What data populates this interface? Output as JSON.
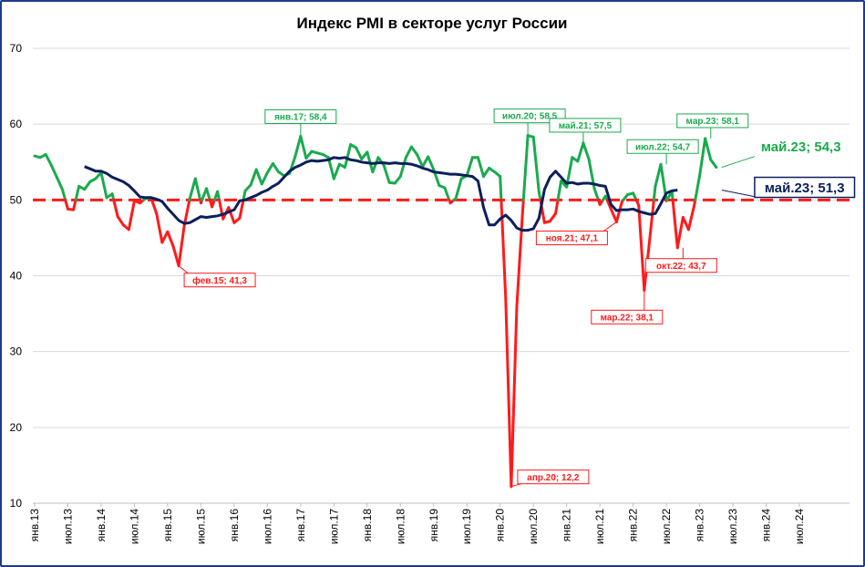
{
  "colors": {
    "green": "#1aaa4e",
    "red": "#ff1a1a",
    "navy": "#0b1f5c",
    "grid": "#d9d9d9",
    "border": "#1f3b86"
  },
  "chart_data": {
    "type": "line",
    "title": "Индекс PMI в секторе услуг России",
    "xlabel": "",
    "ylabel": "",
    "ylim": [
      10,
      70
    ],
    "y_ticks": [
      "10",
      "20",
      "30",
      "40",
      "50",
      "60",
      "70"
    ],
    "grid": "horizontal",
    "threshold": 50,
    "x_tick_labels": [
      "янв.13",
      "июл.13",
      "янв.14",
      "июл.14",
      "янв.15",
      "июл.15",
      "янв.16",
      "июл.16",
      "янв.17",
      "июл.17",
      "янв.18",
      "июл.18",
      "янв.19",
      "июл.19",
      "янв.20",
      "июл.20",
      "янв.21",
      "июл.21",
      "янв.22",
      "июл.22",
      "янв.23",
      "июл.23",
      "янв.24",
      "июл.24"
    ],
    "x_start": "янв.13",
    "series": [
      {
        "role": "monthly",
        "color_above": "green",
        "color_below": "red",
        "values": [
          55.8,
          55.6,
          56.0,
          54.6,
          53.0,
          51.4,
          48.8,
          48.7,
          51.8,
          51.4,
          52.4,
          52.8,
          53.6,
          50.3,
          50.8,
          47.8,
          46.7,
          46.1,
          49.9,
          49.6,
          50.2,
          50.3,
          48.2,
          44.4,
          45.8,
          43.9,
          41.3,
          46.6,
          50.2,
          52.8,
          49.6,
          51.5,
          49.1,
          51.1,
          47.5,
          49.0,
          47.0,
          47.6,
          51.2,
          52.0,
          54.0,
          52.1,
          53.6,
          54.8,
          53.7,
          53.2,
          53.5,
          55.7,
          58.4,
          55.5,
          56.4,
          56.2,
          56.0,
          55.6,
          52.8,
          54.7,
          54.3,
          57.3,
          56.9,
          55.4,
          56.3,
          53.7,
          55.6,
          54.6,
          52.3,
          52.2,
          53.1,
          55.6,
          57.0,
          56.0,
          54.4,
          55.7,
          54.0,
          51.9,
          51.6,
          49.6,
          50.2,
          52.8,
          53.2,
          55.6,
          55.6,
          53.1,
          54.2,
          53.7,
          53.1,
          37.0,
          12.2,
          35.9,
          47.8,
          58.5,
          58.3,
          51.1,
          47.0,
          47.2,
          48.2,
          52.5,
          51.7,
          55.6,
          55.1,
          57.5,
          55.4,
          51.5,
          49.4,
          50.5,
          48.8,
          47.1,
          49.8,
          50.7,
          50.9,
          49.3,
          38.1,
          44.9,
          51.8,
          54.7,
          49.9,
          51.1,
          43.7,
          47.7,
          46.1,
          49.2,
          53.2,
          58.1,
          55.3,
          54.3
        ]
      },
      {
        "role": "moving-average",
        "color": "navy",
        "start_index": 9,
        "values": [
          54.4,
          54.1,
          53.8,
          53.8,
          53.5,
          53.0,
          52.7,
          52.4,
          51.9,
          51.2,
          50.4,
          50.3,
          50.3,
          50.1,
          49.8,
          48.9,
          48.1,
          47.3,
          46.9,
          47.0,
          47.4,
          47.8,
          47.7,
          47.8,
          47.9,
          48.1,
          48.4,
          48.7,
          49.9,
          50.0,
          50.3,
          50.6,
          51.0,
          51.3,
          51.8,
          52.2,
          53.0,
          53.8,
          54.3,
          54.6,
          55.0,
          55.2,
          55.1,
          55.2,
          55.3,
          55.6,
          55.5,
          55.6,
          55.3,
          55.2,
          55.0,
          54.9,
          54.8,
          54.9,
          54.9,
          54.8,
          54.9,
          54.8,
          54.8,
          54.7,
          54.5,
          54.2,
          54.0,
          53.7,
          53.6,
          53.5,
          53.4,
          53.4,
          53.3,
          53.2,
          53.1,
          52.5,
          49.0,
          46.7,
          46.7,
          47.5,
          48.0,
          47.3,
          46.3,
          46.0,
          46.0,
          46.2,
          47.6,
          51.4,
          53.0,
          53.8,
          53.0,
          52.2,
          52.3,
          52.1,
          52.2,
          52.2,
          52.1,
          51.9,
          51.8,
          49.4,
          48.6,
          48.7,
          48.7,
          48.8,
          48.5,
          48.3,
          48.1,
          48.2,
          49.5,
          50.9,
          51.2,
          51.3
        ]
      }
    ],
    "annotations": [
      {
        "label": "янв.17; 58,4",
        "index": 48,
        "value": 58.4,
        "color": "green",
        "size": "small"
      },
      {
        "label": "фев.15; 41,3",
        "index": 26,
        "value": 41.3,
        "color": "red",
        "size": "small"
      },
      {
        "label": "июл.20; 58,5",
        "index": 89,
        "value": 58.5,
        "color": "green",
        "size": "small"
      },
      {
        "label": "апр.20; 12,2",
        "index": 86,
        "value": 12.2,
        "color": "red",
        "size": "small"
      },
      {
        "label": "май.21; 57,5",
        "index": 99,
        "value": 57.5,
        "color": "green",
        "size": "small"
      },
      {
        "label": "ноя.21; 47,1",
        "index": 105,
        "value": 47.1,
        "color": "red",
        "size": "small"
      },
      {
        "label": "июл.22; 54,7",
        "index": 114,
        "value": 54.7,
        "color": "green",
        "size": "small"
      },
      {
        "label": "мар.22; 38,1",
        "index": 110,
        "value": 38.1,
        "color": "red",
        "size": "small"
      },
      {
        "label": "мар.23; 58,1",
        "index": 122,
        "value": 58.1,
        "color": "green",
        "size": "small"
      },
      {
        "label": "окт.22; 43,7",
        "index": 117,
        "value": 43.7,
        "color": "red",
        "size": "small"
      },
      {
        "label": "май.23; 54,3",
        "index": 124,
        "value": 54.3,
        "color": "green",
        "size": "big"
      },
      {
        "label": "май.23; 51,3",
        "index": 124,
        "value": 51.3,
        "color": "navy",
        "size": "big"
      }
    ]
  }
}
